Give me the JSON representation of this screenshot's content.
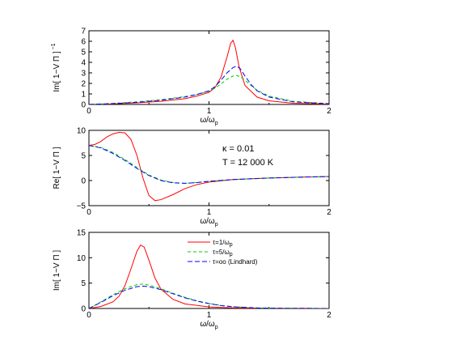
{
  "chart_data": [
    {
      "type": "line",
      "xlabel": "ω/ω",
      "xlabel_sub": "p",
      "ylabel": "Im[ 1−V Π ]",
      "ylabel_sup": "−1",
      "xlim": [
        0,
        2
      ],
      "ylim": [
        0,
        7
      ],
      "xticks": [
        "0",
        "1",
        "2"
      ],
      "yticks": [
        "0",
        "1",
        "2",
        "3",
        "4",
        "5",
        "6",
        "7"
      ],
      "series": [
        {
          "color": "#ff0000",
          "dash": "none",
          "x": [
            0,
            0.2,
            0.4,
            0.6,
            0.8,
            0.9,
            1.0,
            1.05,
            1.1,
            1.15,
            1.18,
            1.2,
            1.22,
            1.25,
            1.3,
            1.4,
            1.5,
            1.7,
            2.0
          ],
          "y": [
            0,
            0.05,
            0.15,
            0.3,
            0.55,
            0.8,
            1.15,
            1.6,
            2.6,
            4.5,
            5.8,
            6.1,
            5.4,
            3.6,
            1.8,
            0.7,
            0.35,
            0.12,
            0.03
          ]
        },
        {
          "color": "#00cc00",
          "dash": "4,3",
          "x": [
            0,
            0.2,
            0.4,
            0.6,
            0.8,
            0.9,
            1.0,
            1.05,
            1.1,
            1.15,
            1.2,
            1.23,
            1.26,
            1.3,
            1.35,
            1.4,
            1.5,
            1.7,
            2.0
          ],
          "y": [
            0,
            0.1,
            0.25,
            0.45,
            0.75,
            0.95,
            1.25,
            1.55,
            1.95,
            2.4,
            2.7,
            2.75,
            2.65,
            2.3,
            1.8,
            1.35,
            0.8,
            0.3,
            0.08
          ]
        },
        {
          "color": "#0000ff",
          "dash": "6,3",
          "x": [
            0,
            0.2,
            0.4,
            0.6,
            0.8,
            0.9,
            1.0,
            1.05,
            1.1,
            1.15,
            1.2,
            1.23,
            1.26,
            1.3,
            1.35,
            1.4,
            1.5,
            1.7,
            2.0
          ],
          "y": [
            0,
            0.08,
            0.2,
            0.4,
            0.7,
            0.95,
            1.3,
            1.7,
            2.3,
            3.0,
            3.5,
            3.65,
            3.4,
            2.7,
            1.9,
            1.3,
            0.7,
            0.25,
            0.06
          ]
        }
      ]
    },
    {
      "type": "line",
      "xlabel": "ω/ω",
      "xlabel_sub": "p",
      "ylabel": "Re[ 1−V Π ]",
      "xlim": [
        0,
        2
      ],
      "ylim": [
        -5,
        10
      ],
      "xticks": [
        "0",
        "1",
        "2"
      ],
      "yticks": [
        "−5",
        "0",
        "5",
        "10"
      ],
      "ytick_values": [
        -5,
        0,
        5,
        10
      ],
      "annotations": [
        "κ = 0.01",
        "T = 12 000 K"
      ],
      "series": [
        {
          "color": "#ff0000",
          "dash": "none",
          "x": [
            0,
            0.05,
            0.1,
            0.15,
            0.2,
            0.25,
            0.3,
            0.35,
            0.4,
            0.45,
            0.5,
            0.55,
            0.6,
            0.7,
            0.8,
            0.9,
            1.0,
            1.2,
            1.5,
            1.8,
            2.0
          ],
          "y": [
            7,
            7.2,
            7.8,
            8.7,
            9.3,
            9.6,
            9.5,
            8.2,
            5.0,
            0.5,
            -3.0,
            -4.0,
            -3.8,
            -2.8,
            -1.6,
            -0.8,
            -0.3,
            0.2,
            0.5,
            0.7,
            0.8
          ]
        },
        {
          "color": "#00cc00",
          "dash": "4,3",
          "x": [
            0,
            0.1,
            0.2,
            0.3,
            0.4,
            0.5,
            0.6,
            0.7,
            0.8,
            0.9,
            1.0,
            1.2,
            1.5,
            1.8,
            2.0
          ],
          "y": [
            7,
            6.6,
            5.6,
            4.2,
            2.6,
            1.1,
            0.1,
            -0.4,
            -0.55,
            -0.4,
            -0.15,
            0.2,
            0.5,
            0.7,
            0.8
          ]
        },
        {
          "color": "#0000ff",
          "dash": "6,3",
          "x": [
            0,
            0.1,
            0.2,
            0.3,
            0.4,
            0.5,
            0.6,
            0.7,
            0.8,
            0.9,
            1.0,
            1.2,
            1.5,
            1.8,
            2.0
          ],
          "y": [
            7,
            6.5,
            5.4,
            4.0,
            2.4,
            1.0,
            0.0,
            -0.45,
            -0.55,
            -0.4,
            -0.15,
            0.2,
            0.5,
            0.7,
            0.8
          ]
        }
      ]
    },
    {
      "type": "line",
      "xlabel": "ω/ω",
      "xlabel_sub": "p",
      "ylabel": "Im[ 1−V Π ]",
      "xlim": [
        0,
        2
      ],
      "ylim": [
        0,
        15
      ],
      "xticks": [
        "0",
        "1",
        "2"
      ],
      "yticks": [
        "0",
        "5",
        "10",
        "15"
      ],
      "ytick_values": [
        0,
        5,
        10,
        15
      ],
      "legend": {
        "position": "top-right",
        "entries": [
          {
            "label": "τ=1/ω",
            "sub": "p",
            "color": "#ff0000",
            "dash": "none"
          },
          {
            "label": "τ=5/ω",
            "sub": "p",
            "color": "#00cc00",
            "dash": "4,3"
          },
          {
            "label": "τ=oo  (Lindhard)",
            "sub": "",
            "color": "#0000ff",
            "dash": "6,3"
          }
        ]
      },
      "series": [
        {
          "color": "#ff0000",
          "dash": "none",
          "x": [
            0,
            0.1,
            0.2,
            0.25,
            0.3,
            0.35,
            0.4,
            0.43,
            0.46,
            0.5,
            0.55,
            0.6,
            0.7,
            0.8,
            1.0,
            1.2,
            1.5,
            2.0
          ],
          "y": [
            0,
            0.4,
            1.3,
            2.4,
            4.5,
            7.8,
            11.3,
            12.5,
            12.1,
            9.5,
            6.0,
            3.8,
            1.8,
            0.9,
            0.3,
            0.12,
            0.04,
            0.01
          ]
        },
        {
          "color": "#00cc00",
          "dash": "4,3",
          "x": [
            0,
            0.1,
            0.2,
            0.3,
            0.4,
            0.45,
            0.5,
            0.6,
            0.7,
            0.8,
            0.9,
            1.0,
            1.1,
            1.2,
            1.4,
            1.6,
            2.0
          ],
          "y": [
            0,
            1.3,
            2.7,
            3.9,
            4.7,
            4.8,
            4.6,
            3.9,
            3.0,
            2.2,
            1.5,
            1.0,
            0.6,
            0.35,
            0.12,
            0.04,
            0.0
          ]
        },
        {
          "color": "#0000ff",
          "dash": "6,3",
          "x": [
            0,
            0.1,
            0.2,
            0.3,
            0.4,
            0.45,
            0.5,
            0.6,
            0.7,
            0.8,
            0.9,
            1.0,
            1.1,
            1.2,
            1.4,
            1.6,
            2.0
          ],
          "y": [
            0,
            1.2,
            2.5,
            3.6,
            4.3,
            4.4,
            4.3,
            3.7,
            2.9,
            2.1,
            1.45,
            0.95,
            0.58,
            0.33,
            0.1,
            0.03,
            0.0
          ]
        }
      ]
    }
  ]
}
